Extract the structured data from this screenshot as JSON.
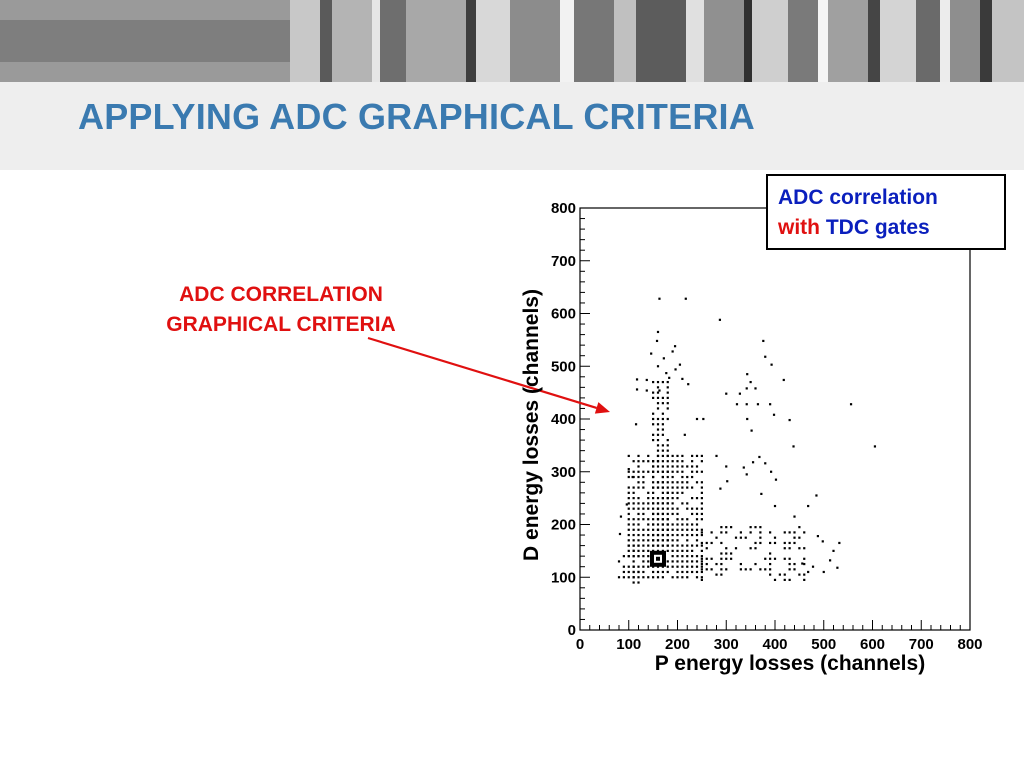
{
  "slide": {
    "title": "APPLYING ADC GRAPHICAL CRITERIA",
    "annotation_line1": "ADC CORRELATION",
    "annotation_line2": "GRAPHICAL CRITERIA",
    "legend_line1": "ADC correlation",
    "legend_with": "with",
    "legend_gates": "TDC gates"
  },
  "colors": {
    "title": "#3a7ab0",
    "annotation": "#e01010",
    "arrow": "#e01010",
    "legend_blue": "#0a1fbd"
  },
  "chart_data": {
    "type": "scatter",
    "xlabel": "P energy losses (channels)",
    "ylabel": "D energy losses (channels)",
    "xlim": [
      0,
      800
    ],
    "ylim": [
      0,
      800
    ],
    "xticks": [
      "0",
      "100",
      "200",
      "300",
      "400",
      "500",
      "600",
      "700",
      "800"
    ],
    "yticks": [
      "0",
      "100",
      "200",
      "300",
      "400",
      "500",
      "600",
      "700",
      "800"
    ],
    "grid": false,
    "points": [
      [
        163,
        628
      ],
      [
        217,
        628
      ],
      [
        287,
        588
      ],
      [
        160,
        565
      ],
      [
        195,
        538
      ],
      [
        190,
        528
      ],
      [
        158,
        548
      ],
      [
        376,
        548
      ],
      [
        146,
        524
      ],
      [
        172,
        515
      ],
      [
        205,
        503
      ],
      [
        196,
        494
      ],
      [
        160,
        500
      ],
      [
        177,
        487
      ],
      [
        183,
        478
      ],
      [
        210,
        476
      ],
      [
        380,
        518
      ],
      [
        393,
        503
      ],
      [
        418,
        474
      ],
      [
        343,
        485
      ],
      [
        350,
        470
      ],
      [
        117,
        475
      ],
      [
        117,
        456
      ],
      [
        137,
        474
      ],
      [
        137,
        454
      ],
      [
        163,
        454
      ],
      [
        222,
        466
      ],
      [
        300,
        448
      ],
      [
        328,
        448
      ],
      [
        342,
        458
      ],
      [
        360,
        458
      ],
      [
        322,
        428
      ],
      [
        342,
        428
      ],
      [
        365,
        428
      ],
      [
        390,
        428
      ],
      [
        253,
        400
      ],
      [
        398,
        408
      ],
      [
        430,
        398
      ],
      [
        556,
        428
      ],
      [
        605,
        348
      ],
      [
        343,
        400
      ],
      [
        352,
        378
      ],
      [
        438,
        348
      ],
      [
        115,
        390
      ],
      [
        100,
        305
      ],
      [
        108,
        290
      ],
      [
        215,
        370
      ],
      [
        240,
        400
      ],
      [
        250,
        330
      ],
      [
        280,
        330
      ],
      [
        300,
        310
      ],
      [
        336,
        308
      ],
      [
        355,
        318
      ],
      [
        368,
        328
      ],
      [
        380,
        316
      ],
      [
        342,
        295
      ],
      [
        302,
        282
      ],
      [
        288,
        268
      ],
      [
        392,
        300
      ],
      [
        402,
        285
      ],
      [
        372,
        258
      ],
      [
        485,
        255
      ],
      [
        468,
        235
      ],
      [
        400,
        235
      ],
      [
        440,
        215
      ],
      [
        84,
        215
      ],
      [
        96,
        238
      ],
      [
        82,
        182
      ],
      [
        488,
        178
      ],
      [
        498,
        168
      ],
      [
        532,
        165
      ],
      [
        520,
        150
      ],
      [
        513,
        132
      ],
      [
        528,
        118
      ],
      [
        478,
        120
      ],
      [
        468,
        110
      ],
      [
        456,
        126
      ],
      [
        500,
        110
      ]
    ],
    "clusters": [
      {
        "x_range": [
          150,
          185
        ],
        "y_range": [
          160,
          470
        ],
        "density": "high"
      },
      {
        "x_range": [
          100,
          250
        ],
        "y_range": [
          100,
          330
        ],
        "density": "high"
      },
      {
        "x_range": [
          250,
          460
        ],
        "y_range": [
          95,
          200
        ],
        "density": "medium"
      },
      {
        "x_range": [
          80,
          120
        ],
        "y_range": [
          90,
          160
        ],
        "density": "low"
      }
    ],
    "peak": {
      "x": 160,
      "y": 135,
      "label": ""
    }
  }
}
